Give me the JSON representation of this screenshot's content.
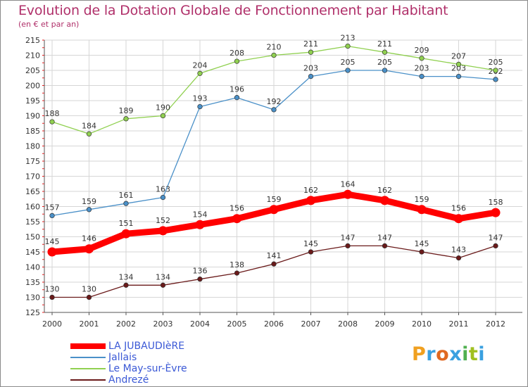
{
  "header": {
    "title": "Evolution de la Dotation Globale de Fonctionnement par Habitant",
    "subtitle": "(en € et par an)"
  },
  "logo": {
    "text": "Proxiti",
    "colors": [
      "#f0a020",
      "#3aa0e0",
      "#e06820",
      "#3aa0e0",
      "#50b050",
      "#a0c020",
      "#3aa0e0"
    ]
  },
  "chart_data": {
    "type": "line",
    "title": "Evolution de la Dotation Globale de Fonctionnement par Habitant",
    "subtitle": "(en € et par an)",
    "xlabel": "",
    "ylabel": "",
    "ylim": [
      125,
      215
    ],
    "yticks": [
      125,
      130,
      135,
      140,
      145,
      150,
      155,
      160,
      165,
      170,
      175,
      180,
      185,
      190,
      195,
      200,
      205,
      210,
      215
    ],
    "x": [
      "2000",
      "2001",
      "2002",
      "2003",
      "2004",
      "2005",
      "2006",
      "2007",
      "2008",
      "2009",
      "2010",
      "2011",
      "2012"
    ],
    "grid": true,
    "legend_position": "bottom-left",
    "series": [
      {
        "name": "LA JUBAUDIèRE",
        "color": "#ff0000",
        "emphasis": true,
        "values": [
          145,
          146,
          151,
          152,
          154,
          156,
          159,
          162,
          164,
          162,
          159,
          156,
          158
        ]
      },
      {
        "name": "Jallais",
        "color": "#4a90c8",
        "values": [
          157,
          159,
          161,
          163,
          193,
          196,
          192,
          203,
          205,
          205,
          203,
          203,
          202
        ]
      },
      {
        "name": "Le May-sur-Èvre",
        "color": "#90d050",
        "values": [
          188,
          184,
          189,
          190,
          204,
          208,
          210,
          211,
          213,
          211,
          209,
          207,
          205
        ]
      },
      {
        "name": "Andrezé",
        "color": "#6a1a1a",
        "values": [
          130,
          130,
          134,
          134,
          136,
          138,
          141,
          145,
          147,
          147,
          145,
          143,
          147
        ]
      }
    ]
  }
}
